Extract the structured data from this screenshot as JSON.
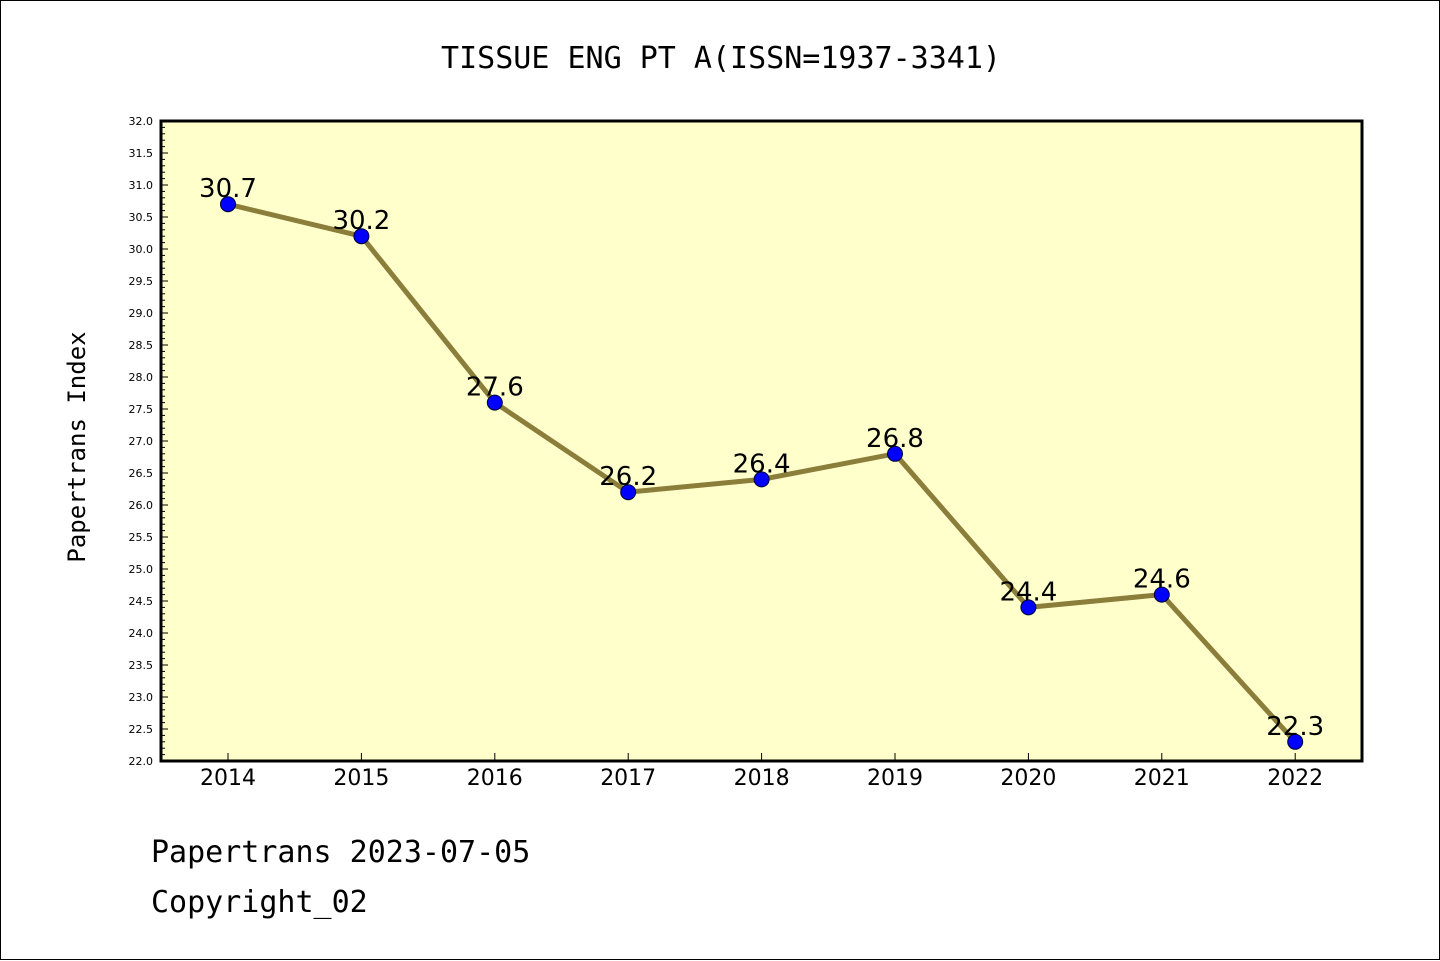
{
  "colors": {
    "plot_background": "#ffffcc",
    "line": "#8b7d3a",
    "marker": "#0000ff",
    "axis": "#000000"
  },
  "chart_data": {
    "type": "line",
    "title": "TISSUE ENG PT A(ISSN=1937-3341)",
    "ylabel": "Papertrans Index",
    "xlabel": "",
    "categories": [
      "2014",
      "2015",
      "2016",
      "2017",
      "2018",
      "2019",
      "2020",
      "2021",
      "2022"
    ],
    "series": [
      {
        "values": [
          30.7,
          30.2,
          27.6,
          26.2,
          26.4,
          26.8,
          24.4,
          24.6,
          22.3
        ],
        "data_labels": [
          "30.7",
          "30.2",
          "27.6",
          "26.2",
          "26.4",
          "26.8",
          "24.4",
          "24.6",
          "22.3"
        ]
      }
    ],
    "ylim": [
      22.0,
      32.0
    ],
    "yticks": [
      "22.0",
      "22.5",
      "23.0",
      "23.5",
      "24.0",
      "24.5",
      "25.0",
      "25.5",
      "26.0",
      "26.5",
      "27.0",
      "27.5",
      "28.0",
      "28.5",
      "29.0",
      "29.5",
      "30.0",
      "30.5",
      "31.0",
      "31.5",
      "32.0"
    ],
    "grid": false,
    "legend": "none"
  },
  "footer": {
    "date_line": "Papertrans 2023-07-05",
    "copyright": "Copyright_02"
  }
}
